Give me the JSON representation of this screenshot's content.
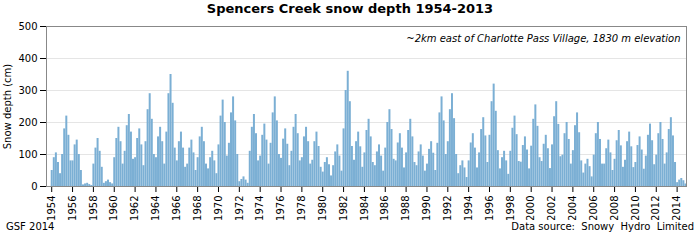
{
  "chart_data": {
    "type": "bar",
    "title": "Spencers Creek snow depth 1954-2013",
    "subtitle": "~2km east of Charlotte Pass Village, 1830 m elevation",
    "ylabel": "Snow depth (cm)",
    "annotations": [
      "GSF 2014",
      "Data source:  Snowy  Hydro  Limited"
    ],
    "color": "#7bafd4",
    "grid": true,
    "xlim": [
      1953.5,
      2014.9
    ],
    "xticks": [
      1954,
      1956,
      1958,
      1960,
      1962,
      1964,
      1966,
      1968,
      1970,
      1972,
      1974,
      1976,
      1978,
      1980,
      1982,
      1984,
      1986,
      1988,
      1990,
      1992,
      1994,
      1996,
      1998,
      2000,
      2002,
      2004,
      2006,
      2008,
      2010,
      2012,
      2014
    ],
    "ylim": [
      0,
      500
    ],
    "yticks": [
      0,
      100,
      200,
      300,
      400,
      500
    ],
    "x": [
      1954.0,
      1954.2,
      1954.4,
      1954.6,
      1954.8,
      1955.0,
      1955.2,
      1955.4,
      1955.6,
      1955.8,
      1956.0,
      1956.2,
      1956.4,
      1956.6,
      1956.8,
      1957.0,
      1957.2,
      1957.4,
      1957.6,
      1957.8,
      1958.0,
      1958.2,
      1958.4,
      1958.6,
      1958.8,
      1959.0,
      1959.2,
      1959.4,
      1959.6,
      1959.8,
      1960.0,
      1960.2,
      1960.4,
      1960.6,
      1960.8,
      1961.0,
      1961.2,
      1961.4,
      1961.6,
      1961.8,
      1962.0,
      1962.2,
      1962.4,
      1962.6,
      1962.8,
      1963.0,
      1963.2,
      1963.4,
      1963.6,
      1963.8,
      1964.0,
      1964.2,
      1964.4,
      1964.6,
      1964.8,
      1965.0,
      1965.2,
      1965.4,
      1965.6,
      1965.8,
      1966.0,
      1966.2,
      1966.4,
      1966.6,
      1966.8,
      1967.0,
      1967.2,
      1967.4,
      1967.6,
      1967.8,
      1968.0,
      1968.2,
      1968.4,
      1968.6,
      1968.8,
      1969.0,
      1969.2,
      1969.4,
      1969.6,
      1969.8,
      1970.0,
      1970.2,
      1970.4,
      1970.6,
      1970.8,
      1971.0,
      1971.2,
      1971.4,
      1971.6,
      1971.8,
      1972.0,
      1972.2,
      1972.4,
      1972.6,
      1972.8,
      1973.0,
      1973.2,
      1973.4,
      1973.6,
      1973.8,
      1974.0,
      1974.2,
      1974.4,
      1974.6,
      1974.8,
      1975.0,
      1975.2,
      1975.4,
      1975.6,
      1975.8,
      1976.0,
      1976.2,
      1976.4,
      1976.6,
      1976.8,
      1977.0,
      1977.2,
      1977.4,
      1977.6,
      1977.8,
      1978.0,
      1978.2,
      1978.4,
      1978.6,
      1978.8,
      1979.0,
      1979.2,
      1979.4,
      1979.6,
      1979.8,
      1980.0,
      1980.2,
      1980.4,
      1980.6,
      1980.8,
      1981.0,
      1981.2,
      1981.4,
      1981.6,
      1981.8,
      1982.0,
      1982.2,
      1982.4,
      1982.6,
      1982.8,
      1983.0,
      1983.2,
      1983.4,
      1983.6,
      1983.8,
      1984.0,
      1984.2,
      1984.4,
      1984.6,
      1984.8,
      1985.0,
      1985.2,
      1985.4,
      1985.6,
      1985.8,
      1986.0,
      1986.2,
      1986.4,
      1986.6,
      1986.8,
      1987.0,
      1987.2,
      1987.4,
      1987.6,
      1987.8,
      1988.0,
      1988.2,
      1988.4,
      1988.6,
      1988.8,
      1989.0,
      1989.2,
      1989.4,
      1989.6,
      1989.8,
      1990.0,
      1990.2,
      1990.4,
      1990.6,
      1990.8,
      1991.0,
      1991.2,
      1991.4,
      1991.6,
      1991.8,
      1992.0,
      1992.2,
      1992.4,
      1992.6,
      1992.8,
      1993.0,
      1993.2,
      1993.4,
      1993.6,
      1993.8,
      1994.0,
      1994.2,
      1994.4,
      1994.6,
      1994.8,
      1995.0,
      1995.2,
      1995.4,
      1995.6,
      1995.8,
      1996.0,
      1996.2,
      1996.4,
      1996.6,
      1996.8,
      1997.0,
      1997.2,
      1997.4,
      1997.6,
      1997.8,
      1998.0,
      1998.2,
      1998.4,
      1998.6,
      1998.8,
      1999.0,
      1999.2,
      1999.4,
      1999.6,
      1999.8,
      2000.0,
      2000.2,
      2000.4,
      2000.6,
      2000.8,
      2001.0,
      2001.2,
      2001.4,
      2001.6,
      2001.8,
      2002.0,
      2002.2,
      2002.4,
      2002.6,
      2002.8,
      2003.0,
      2003.2,
      2003.4,
      2003.6,
      2003.8,
      2004.0,
      2004.2,
      2004.4,
      2004.6,
      2004.8,
      2005.0,
      2005.2,
      2005.4,
      2005.6,
      2005.8,
      2006.0,
      2006.2,
      2006.4,
      2006.6,
      2006.8,
      2007.0,
      2007.2,
      2007.4,
      2007.6,
      2007.8,
      2008.0,
      2008.2,
      2008.4,
      2008.6,
      2008.8,
      2009.0,
      2009.2,
      2009.4,
      2009.6,
      2009.8,
      2010.0,
      2010.2,
      2010.4,
      2010.6,
      2010.8,
      2011.0,
      2011.2,
      2011.4,
      2011.6,
      2011.8,
      2012.0,
      2012.2,
      2012.4,
      2012.6,
      2012.8,
      2013.0,
      2013.2,
      2013.4,
      2013.6,
      2013.8,
      2014.0,
      2014.2,
      2014.4,
      2014.6,
      2014.8
    ],
    "values": [
      50,
      90,
      105,
      75,
      40,
      100,
      180,
      220,
      160,
      80,
      80,
      130,
      145,
      100,
      50,
      5,
      8,
      10,
      6,
      3,
      70,
      120,
      150,
      110,
      60,
      10,
      15,
      20,
      12,
      8,
      90,
      150,
      185,
      140,
      70,
      110,
      190,
      225,
      170,
      85,
      90,
      150,
      180,
      130,
      65,
      140,
      240,
      290,
      210,
      100,
      90,
      155,
      185,
      140,
      70,
      170,
      290,
      350,
      260,
      120,
      80,
      140,
      170,
      120,
      60,
      70,
      120,
      145,
      105,
      50,
      90,
      155,
      185,
      140,
      70,
      55,
      90,
      110,
      80,
      40,
      130,
      220,
      270,
      200,
      95,
      135,
      230,
      280,
      205,
      100,
      15,
      22,
      30,
      20,
      10,
      110,
      185,
      225,
      165,
      80,
      95,
      160,
      195,
      145,
      70,
      135,
      230,
      280,
      205,
      100,
      88,
      148,
      180,
      132,
      65,
      110,
      185,
      225,
      165,
      80,
      90,
      155,
      185,
      140,
      70,
      82,
      140,
      170,
      125,
      60,
      45,
      75,
      90,
      68,
      33,
      65,
      108,
      130,
      95,
      48,
      180,
      300,
      360,
      265,
      125,
      82,
      140,
      170,
      124,
      60,
      105,
      175,
      210,
      155,
      75,
      65,
      108,
      130,
      95,
      48,
      120,
      200,
      240,
      178,
      85,
      80,
      136,
      165,
      120,
      58,
      105,
      175,
      210,
      155,
      75,
      65,
      108,
      130,
      95,
      48,
      70,
      116,
      140,
      104,
      50,
      135,
      230,
      280,
      205,
      100,
      140,
      240,
      290,
      212,
      100,
      40,
      65,
      80,
      58,
      28,
      80,
      136,
      165,
      120,
      58,
      105,
      178,
      215,
      158,
      75,
      160,
      265,
      320,
      235,
      112,
      55,
      90,
      110,
      80,
      38,
      110,
      182,
      220,
      162,
      78,
      76,
      128,
      155,
      114,
      55,
      126,
      210,
      255,
      188,
      90,
      78,
      132,
      160,
      118,
      56,
      130,
      218,
      265,
      194,
      93,
      98,
      165,
      200,
      147,
      70,
      112,
      190,
      230,
      168,
      80,
      42,
      70,
      85,
      62,
      30,
      98,
      165,
      200,
      147,
      70,
      70,
      118,
      145,
      105,
      50,
      85,
      143,
      175,
      127,
      60,
      82,
      140,
      170,
      124,
      59,
      75,
      128,
      155,
      114,
      54,
      95,
      160,
      195,
      143,
      68,
      98,
      165,
      200,
      147,
      70,
      105,
      178,
      215,
      158,
      75,
      12,
      20,
      25,
      18,
      8
    ]
  }
}
